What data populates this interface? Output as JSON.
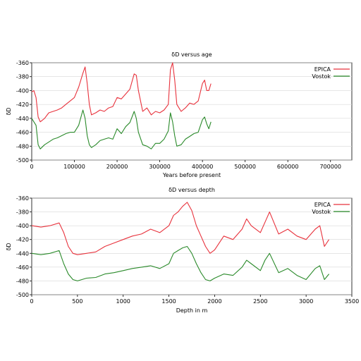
{
  "chart_data": [
    {
      "type": "line",
      "title": "δD versus age",
      "xlabel": "Years before present",
      "ylabel": "δD",
      "xlim": [
        0,
        750000
      ],
      "ylim": [
        -500,
        -360
      ],
      "xticks": [
        0,
        100000,
        200000,
        300000,
        400000,
        500000,
        600000,
        700000
      ],
      "yticks": [
        -360,
        -380,
        -400,
        -420,
        -440,
        -460,
        -480,
        -500
      ],
      "legend_position": "top-right",
      "series": [
        {
          "name": "EPICA",
          "color": "#e8323c",
          "x": [
            0,
            5000,
            10000,
            15000,
            20000,
            30000,
            40000,
            50000,
            60000,
            70000,
            80000,
            90000,
            100000,
            110000,
            120000,
            125000,
            130000,
            135000,
            140000,
            150000,
            160000,
            170000,
            180000,
            190000,
            200000,
            210000,
            220000,
            230000,
            240000,
            245000,
            250000,
            260000,
            270000,
            280000,
            290000,
            300000,
            310000,
            320000,
            325000,
            330000,
            335000,
            340000,
            350000,
            360000,
            370000,
            380000,
            390000,
            400000,
            405000,
            410000,
            415000,
            420000
          ],
          "y": [
            -402,
            -400,
            -410,
            -438,
            -445,
            -440,
            -432,
            -430,
            -428,
            -425,
            -420,
            -415,
            -410,
            -395,
            -375,
            -366,
            -390,
            -420,
            -435,
            -432,
            -428,
            -430,
            -425,
            -423,
            -410,
            -412,
            -405,
            -398,
            -376,
            -378,
            -400,
            -430,
            -425,
            -435,
            -430,
            -432,
            -428,
            -420,
            -370,
            -360,
            -385,
            -420,
            -430,
            -425,
            -418,
            -420,
            -415,
            -390,
            -385,
            -400,
            -400,
            -390
          ]
        },
        {
          "name": "Vostok",
          "color": "#2a8a2a",
          "x": [
            0,
            5000,
            10000,
            15000,
            20000,
            30000,
            40000,
            50000,
            60000,
            70000,
            80000,
            90000,
            100000,
            110000,
            120000,
            125000,
            130000,
            135000,
            140000,
            150000,
            160000,
            170000,
            180000,
            190000,
            200000,
            210000,
            220000,
            230000,
            240000,
            245000,
            250000,
            260000,
            270000,
            280000,
            290000,
            300000,
            310000,
            320000,
            325000,
            330000,
            335000,
            340000,
            350000,
            360000,
            370000,
            380000,
            390000,
            400000,
            405000,
            410000,
            415000,
            420000
          ],
          "y": [
            -440,
            -445,
            -450,
            -478,
            -484,
            -478,
            -474,
            -470,
            -468,
            -465,
            -462,
            -460,
            -460,
            -450,
            -428,
            -440,
            -465,
            -478,
            -482,
            -478,
            -472,
            -470,
            -468,
            -470,
            -455,
            -462,
            -452,
            -446,
            -430,
            -440,
            -460,
            -478,
            -480,
            -484,
            -476,
            -476,
            -470,
            -458,
            -432,
            -445,
            -465,
            -480,
            -478,
            -470,
            -466,
            -462,
            -460,
            -442,
            -438,
            -448,
            -455,
            -445
          ]
        }
      ]
    },
    {
      "type": "line",
      "title": "δD versus depth",
      "xlabel": "Depth in m",
      "ylabel": "δD",
      "xlim": [
        0,
        3500
      ],
      "ylim": [
        -500,
        -360
      ],
      "xticks": [
        0,
        500,
        1000,
        1500,
        2000,
        2500,
        3000,
        3500
      ],
      "yticks": [
        -360,
        -380,
        -400,
        -420,
        -440,
        -460,
        -480,
        -500
      ],
      "legend_position": "top-right",
      "series": [
        {
          "name": "EPICA",
          "color": "#e8323c",
          "x": [
            0,
            100,
            200,
            300,
            350,
            400,
            450,
            500,
            600,
            700,
            800,
            900,
            1000,
            1100,
            1200,
            1300,
            1400,
            1500,
            1550,
            1600,
            1650,
            1700,
            1750,
            1800,
            1850,
            1900,
            1950,
            2000,
            2100,
            2200,
            2300,
            2350,
            2400,
            2500,
            2550,
            2600,
            2700,
            2800,
            2900,
            3000,
            3100,
            3150,
            3200,
            3250
          ],
          "y": [
            -400,
            -402,
            -400,
            -396,
            -410,
            -430,
            -440,
            -442,
            -440,
            -438,
            -430,
            -425,
            -420,
            -415,
            -412,
            -405,
            -410,
            -400,
            -385,
            -380,
            -372,
            -366,
            -378,
            -400,
            -415,
            -430,
            -440,
            -435,
            -415,
            -420,
            -405,
            -390,
            -400,
            -410,
            -395,
            -380,
            -412,
            -405,
            -415,
            -420,
            -405,
            -400,
            -430,
            -420
          ]
        },
        {
          "name": "Vostok",
          "color": "#2a8a2a",
          "x": [
            0,
            100,
            200,
            300,
            350,
            400,
            450,
            500,
            600,
            700,
            800,
            900,
            1000,
            1100,
            1200,
            1300,
            1400,
            1500,
            1550,
            1600,
            1650,
            1700,
            1750,
            1800,
            1850,
            1900,
            1950,
            2000,
            2100,
            2200,
            2300,
            2350,
            2400,
            2500,
            2550,
            2600,
            2700,
            2800,
            2900,
            3000,
            3100,
            3150,
            3200,
            3250
          ],
          "y": [
            -440,
            -442,
            -440,
            -436,
            -455,
            -470,
            -478,
            -480,
            -476,
            -475,
            -470,
            -468,
            -465,
            -462,
            -460,
            -458,
            -462,
            -455,
            -440,
            -436,
            -432,
            -430,
            -440,
            -455,
            -468,
            -478,
            -480,
            -476,
            -470,
            -472,
            -460,
            -450,
            -455,
            -465,
            -450,
            -440,
            -468,
            -462,
            -472,
            -478,
            -462,
            -458,
            -478,
            -470
          ]
        }
      ]
    }
  ]
}
